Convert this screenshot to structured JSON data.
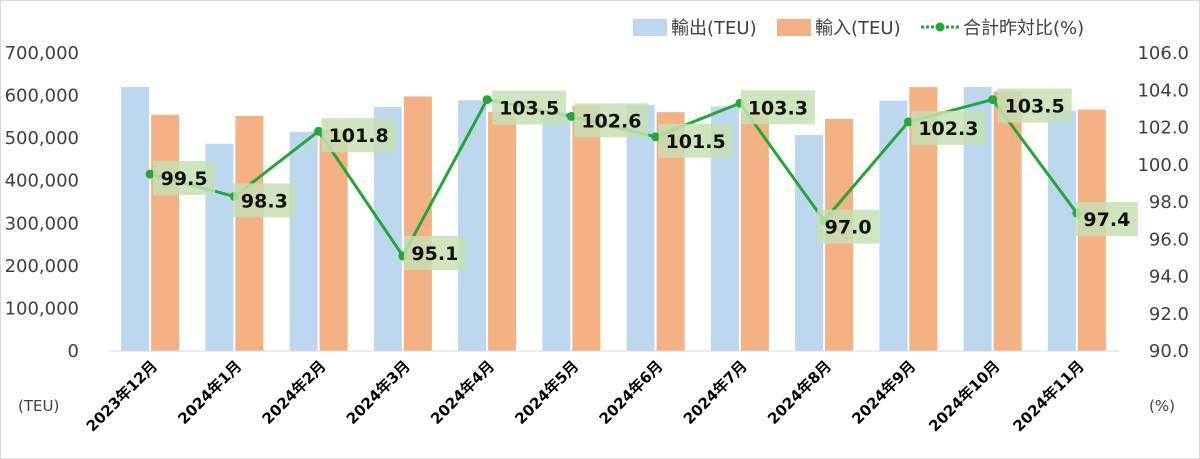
{
  "chart_data": {
    "type": "bar",
    "categories": [
      "2023年12月",
      "2024年1月",
      "2024年2月",
      "2024年3月",
      "2024年4月",
      "2024年5月",
      "2024年6月",
      "2024年7月",
      "2024年8月",
      "2024年9月",
      "2024年10月",
      "2024年11月"
    ],
    "series": [
      {
        "name": "輸出(TEU)",
        "type": "bar",
        "axis": "left",
        "color": "#bdd7ee",
        "values": [
          620000,
          487000,
          515000,
          573000,
          589000,
          560000,
          578000,
          574000,
          507000,
          588000,
          620000,
          564000
        ]
      },
      {
        "name": "輸入(TEU)",
        "type": "bar",
        "axis": "left",
        "color": "#f4b183",
        "values": [
          555000,
          552000,
          520000,
          598000,
          562000,
          576000,
          561000,
          557000,
          545000,
          620000,
          610000,
          567000
        ]
      },
      {
        "name": "合計昨対比(%)",
        "type": "line",
        "axis": "right",
        "color": "#22a838",
        "values": [
          99.5,
          98.3,
          101.8,
          95.1,
          103.5,
          102.6,
          101.5,
          103.3,
          97.0,
          102.3,
          103.5,
          97.4
        ],
        "labels": [
          "99.5",
          "98.3",
          "101.8",
          "95.1",
          "103.5",
          "102.6",
          "101.5",
          "103.3",
          "97.0",
          "102.3",
          "103.5",
          "97.4"
        ]
      }
    ],
    "y_left": {
      "min": 0,
      "max": 700000,
      "ticks": [
        "0",
        "100,000",
        "200,000",
        "300,000",
        "400,000",
        "500,000",
        "600,000",
        "700,000"
      ],
      "unit": "(TEU)"
    },
    "y_right": {
      "min": 90,
      "max": 106,
      "ticks": [
        "90.0",
        "92.0",
        "94.0",
        "96.0",
        "98.0",
        "100.0",
        "102.0",
        "104.0",
        "106.0"
      ],
      "unit": "(%)"
    },
    "legend_position": "top-right",
    "label_background": "#c6e0b4",
    "grid": false
  }
}
